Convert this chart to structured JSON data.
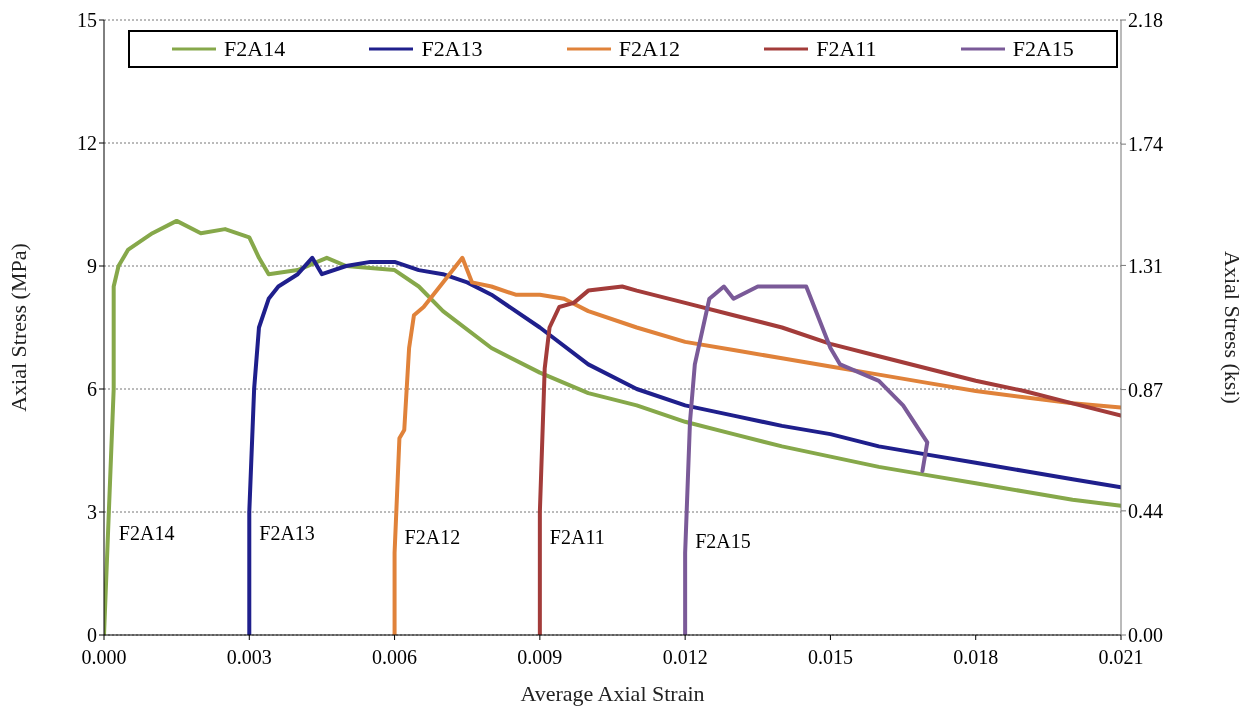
{
  "chart_data": {
    "type": "line",
    "xlabel": "Average Axial Strain",
    "ylabel": "Axial Stress (MPa)",
    "y2label": "Axial Stress (ksi)",
    "xlim": [
      0,
      0.021
    ],
    "xticks": [
      {
        "value": 0,
        "label": "0.000"
      },
      {
        "value": 0.003,
        "label": "0.003"
      },
      {
        "value": 0.006,
        "label": "0.006"
      },
      {
        "value": 0.009,
        "label": "0.009"
      },
      {
        "value": 0.012,
        "label": "0.012"
      },
      {
        "value": 0.015,
        "label": "0.015"
      },
      {
        "value": 0.018,
        "label": "0.018"
      },
      {
        "value": 0.021,
        "label": "0.021"
      }
    ],
    "ylim": [
      0,
      15
    ],
    "yticks": [
      0,
      3,
      6,
      9,
      12,
      15
    ],
    "y2lim": [
      0,
      2.18
    ],
    "y2ticks": [
      {
        "value": 0,
        "label": "0.00"
      },
      0.44,
      0.87,
      1.31,
      1.74,
      2.18
    ],
    "grid": "y",
    "legend": "top",
    "annotations": [
      {
        "text": "F2A14",
        "x": 0.0001,
        "y": 2.5
      },
      {
        "text": "F2A13",
        "x": 0.003,
        "y": 2.5
      },
      {
        "text": "F2A12",
        "x": 0.006,
        "y": 2.4
      },
      {
        "text": "F2A11",
        "x": 0.009,
        "y": 2.4
      },
      {
        "text": "F2A15",
        "x": 0.012,
        "y": 2.3
      }
    ],
    "series": [
      {
        "name": "F2A14",
        "color": "#86a84a",
        "x": [
          0,
          0.0001,
          0.0002,
          0.0002,
          0.0003,
          0.0005,
          0.001,
          0.0015,
          0.002,
          0.0025,
          0.003,
          0.0032,
          0.0034,
          0.004,
          0.0046,
          0.005,
          0.006,
          0.0065,
          0.007,
          0.008,
          0.009,
          0.01,
          0.011,
          0.012,
          0.013,
          0.014,
          0.015,
          0.016,
          0.017,
          0.018,
          0.019,
          0.02,
          0.021
        ],
        "values": [
          0,
          3,
          6,
          8.5,
          9,
          9.4,
          9.8,
          10.1,
          9.8,
          9.9,
          9.7,
          9.2,
          8.8,
          8.9,
          9.2,
          9,
          8.9,
          8.5,
          7.9,
          7,
          6.4,
          5.9,
          5.6,
          5.2,
          4.9,
          4.6,
          4.35,
          4.1,
          3.9,
          3.7,
          3.5,
          3.3,
          3.15
        ]
      },
      {
        "name": "F2A13",
        "color": "#1f1f8c",
        "x": [
          0.003,
          0.003,
          0.0031,
          0.0032,
          0.0034,
          0.0036,
          0.004,
          0.0043,
          0.0045,
          0.005,
          0.0055,
          0.006,
          0.0065,
          0.007,
          0.0075,
          0.008,
          0.009,
          0.01,
          0.011,
          0.012,
          0.013,
          0.014,
          0.015,
          0.016,
          0.017,
          0.018,
          0.019,
          0.02,
          0.021
        ],
        "values": [
          0,
          3,
          6,
          7.5,
          8.2,
          8.5,
          8.8,
          9.2,
          8.8,
          9,
          9.1,
          9.1,
          8.9,
          8.8,
          8.6,
          8.3,
          7.5,
          6.6,
          6,
          5.6,
          5.35,
          5.1,
          4.9,
          4.6,
          4.4,
          4.2,
          4,
          3.8,
          3.6
        ]
      },
      {
        "name": "F2A12",
        "color": "#e0823a",
        "x": [
          0.006,
          0.006,
          0.0061,
          0.0062,
          0.0063,
          0.0064,
          0.0066,
          0.007,
          0.0074,
          0.0076,
          0.008,
          0.0085,
          0.009,
          0.0095,
          0.01,
          0.011,
          0.012,
          0.013,
          0.014,
          0.015,
          0.016,
          0.017,
          0.018,
          0.019,
          0.02,
          0.021
        ],
        "values": [
          0,
          2,
          4.8,
          5,
          7,
          7.8,
          8,
          8.6,
          9.2,
          8.6,
          8.5,
          8.3,
          8.3,
          8.2,
          7.9,
          7.5,
          7.15,
          6.95,
          6.75,
          6.55,
          6.35,
          6.15,
          5.95,
          5.8,
          5.65,
          5.55
        ]
      },
      {
        "name": "F2A11",
        "color": "#a33c3a",
        "x": [
          0.009,
          0.009,
          0.0091,
          0.0092,
          0.0094,
          0.0097,
          0.01,
          0.0107,
          0.011,
          0.012,
          0.013,
          0.014,
          0.015,
          0.016,
          0.017,
          0.018,
          0.019,
          0.02,
          0.021
        ],
        "values": [
          0,
          3,
          6.5,
          7.5,
          8,
          8.1,
          8.4,
          8.5,
          8.4,
          8.1,
          7.8,
          7.5,
          7.1,
          6.8,
          6.5,
          6.2,
          5.95,
          5.65,
          5.35
        ]
      },
      {
        "name": "F2A15",
        "color": "#7a5a98",
        "x": [
          0.012,
          0.012,
          0.0121,
          0.0122,
          0.0125,
          0.0126,
          0.0128,
          0.013,
          0.0135,
          0.014,
          0.0145,
          0.0146,
          0.015,
          0.0152,
          0.016,
          0.0165,
          0.017,
          0.0169
        ],
        "values": [
          0,
          2,
          5.2,
          6.6,
          8.2,
          8.3,
          8.5,
          8.2,
          8.5,
          8.5,
          8.5,
          8.2,
          7,
          6.6,
          6.2,
          5.6,
          4.7,
          4
        ]
      }
    ]
  }
}
